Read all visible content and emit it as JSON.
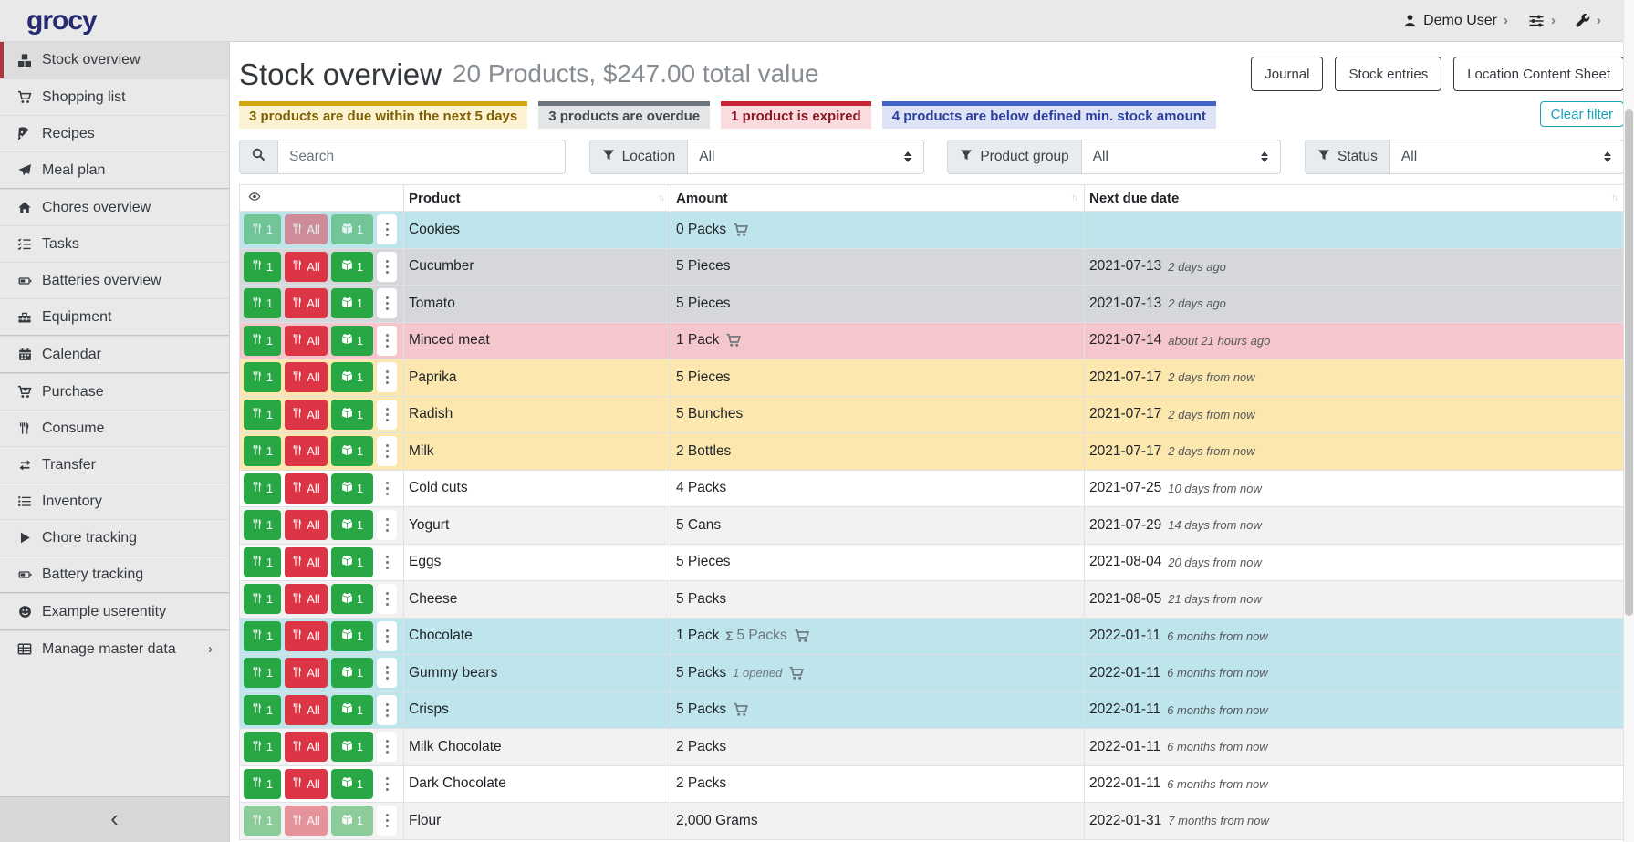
{
  "navbar": {
    "logo": "grocy",
    "user_label": "Demo User"
  },
  "sidebar": {
    "items": [
      {
        "label": "Stock overview",
        "icon": "stock-overview-icon",
        "active": true
      },
      {
        "label": "Shopping list",
        "icon": "shopping-cart-icon"
      },
      {
        "label": "Recipes",
        "icon": "pizza-slice-icon"
      },
      {
        "label": "Meal plan",
        "icon": "paper-plane-icon",
        "divider_after": true
      },
      {
        "label": "Chores overview",
        "icon": "home-icon"
      },
      {
        "label": "Tasks",
        "icon": "checklist-icon"
      },
      {
        "label": "Batteries overview",
        "icon": "battery-icon"
      },
      {
        "label": "Equipment",
        "icon": "toolbox-icon",
        "divider_after": true
      },
      {
        "label": "Calendar",
        "icon": "calendar-icon",
        "divider_after": true
      },
      {
        "label": "Purchase",
        "icon": "cart-plus-icon"
      },
      {
        "label": "Consume",
        "icon": "utensils-icon"
      },
      {
        "label": "Transfer",
        "icon": "transfer-arrows-icon"
      },
      {
        "label": "Inventory",
        "icon": "list-icon"
      },
      {
        "label": "Chore tracking",
        "icon": "play-icon"
      },
      {
        "label": "Battery tracking",
        "icon": "battery-icon",
        "divider_after": true
      },
      {
        "label": "Example userentity",
        "icon": "smiley-icon",
        "divider_after": true
      },
      {
        "label": "Manage master data",
        "icon": "table-grid-icon",
        "chevron": true
      }
    ]
  },
  "header": {
    "title": "Stock overview",
    "subtitle": "20 Products, $247.00 total value"
  },
  "toolbar": {
    "buttons": [
      "Journal",
      "Stock entries",
      "Location Content Sheet"
    ]
  },
  "banners": [
    {
      "text": "3 products are due within the next 5 days",
      "type": "warning"
    },
    {
      "text": "3 products are overdue",
      "type": "secondary"
    },
    {
      "text": "1 product is expired",
      "type": "danger"
    },
    {
      "text": "4 products are below defined min. stock amount",
      "type": "minstock"
    }
  ],
  "clear_filter_label": "Clear filter",
  "filters": {
    "search_placeholder": "Search",
    "location": {
      "label": "Location",
      "value": "All"
    },
    "product_group": {
      "label": "Product group",
      "value": "All"
    },
    "status": {
      "label": "Status",
      "value": "All"
    }
  },
  "table": {
    "columns": [
      "Product",
      "Amount",
      "Next due date"
    ],
    "row_buttons": {
      "consume_one": "1",
      "consume_all": "All",
      "open_one": "1"
    },
    "rows": [
      {
        "product": "Cookies",
        "amount": "0 Packs",
        "cart": true,
        "faded": true,
        "variant": "info",
        "date": "",
        "relative": ""
      },
      {
        "product": "Cucumber",
        "amount": "5 Pieces",
        "cart": false,
        "faded": false,
        "variant": "secondary",
        "date": "2021-07-13",
        "relative": "2 days ago"
      },
      {
        "product": "Tomato",
        "amount": "5 Pieces",
        "cart": false,
        "faded": false,
        "variant": "secondary",
        "date": "2021-07-13",
        "relative": "2 days ago"
      },
      {
        "product": "Minced meat",
        "amount": "1 Pack",
        "cart": true,
        "faded": false,
        "variant": "danger",
        "date": "2021-07-14",
        "relative": "about 21 hours ago"
      },
      {
        "product": "Paprika",
        "amount": "5 Pieces",
        "cart": false,
        "faded": false,
        "variant": "warning",
        "date": "2021-07-17",
        "relative": "2 days from now"
      },
      {
        "product": "Radish",
        "amount": "5 Bunches",
        "cart": false,
        "faded": false,
        "variant": "warning",
        "date": "2021-07-17",
        "relative": "2 days from now"
      },
      {
        "product": "Milk",
        "amount": "2 Bottles",
        "cart": false,
        "faded": false,
        "variant": "warning",
        "date": "2021-07-17",
        "relative": "2 days from now"
      },
      {
        "product": "Cold cuts",
        "amount": "4 Packs",
        "cart": false,
        "faded": false,
        "variant": "none",
        "date": "2021-07-25",
        "relative": "10 days from now"
      },
      {
        "product": "Yogurt",
        "amount": "5 Cans",
        "cart": false,
        "faded": false,
        "variant": "none",
        "date": "2021-07-29",
        "relative": "14 days from now"
      },
      {
        "product": "Eggs",
        "amount": "5 Pieces",
        "cart": false,
        "faded": false,
        "variant": "none",
        "date": "2021-08-04",
        "relative": "20 days from now"
      },
      {
        "product": "Cheese",
        "amount": "5 Packs",
        "cart": false,
        "faded": false,
        "variant": "none",
        "date": "2021-08-05",
        "relative": "21 days from now"
      },
      {
        "product": "Chocolate",
        "amount": "1 Pack",
        "sum": "5 Packs",
        "cart": true,
        "faded": false,
        "variant": "info",
        "date": "2022-01-11",
        "relative": "6 months from now"
      },
      {
        "product": "Gummy bears",
        "amount": "5 Packs",
        "note": "1 opened",
        "cart": true,
        "faded": false,
        "variant": "info",
        "date": "2022-01-11",
        "relative": "6 months from now"
      },
      {
        "product": "Crisps",
        "amount": "5 Packs",
        "cart": true,
        "faded": false,
        "variant": "info",
        "date": "2022-01-11",
        "relative": "6 months from now"
      },
      {
        "product": "Milk Chocolate",
        "amount": "2 Packs",
        "cart": false,
        "faded": false,
        "variant": "none",
        "date": "2022-01-11",
        "relative": "6 months from now"
      },
      {
        "product": "Dark Chocolate",
        "amount": "2 Packs",
        "cart": false,
        "faded": false,
        "variant": "none",
        "date": "2022-01-11",
        "relative": "6 months from now"
      },
      {
        "product": "Flour",
        "amount": "2,000 Grams",
        "cart": false,
        "faded": true,
        "variant": "none",
        "date": "2022-01-31",
        "relative": "7 months from now"
      }
    ]
  },
  "colors": {
    "brand_logo": "#252c71",
    "success_button": "#28a745",
    "danger_button": "#dc3545",
    "clear_filter_accent": "#17a2b8",
    "active_nav_indicator": "#ad3540",
    "row_below_min_stock": "#bee5eb",
    "row_overdue": "#d5d7da",
    "row_expired": "#f5c6cb",
    "row_due_soon": "#fce8ae"
  }
}
